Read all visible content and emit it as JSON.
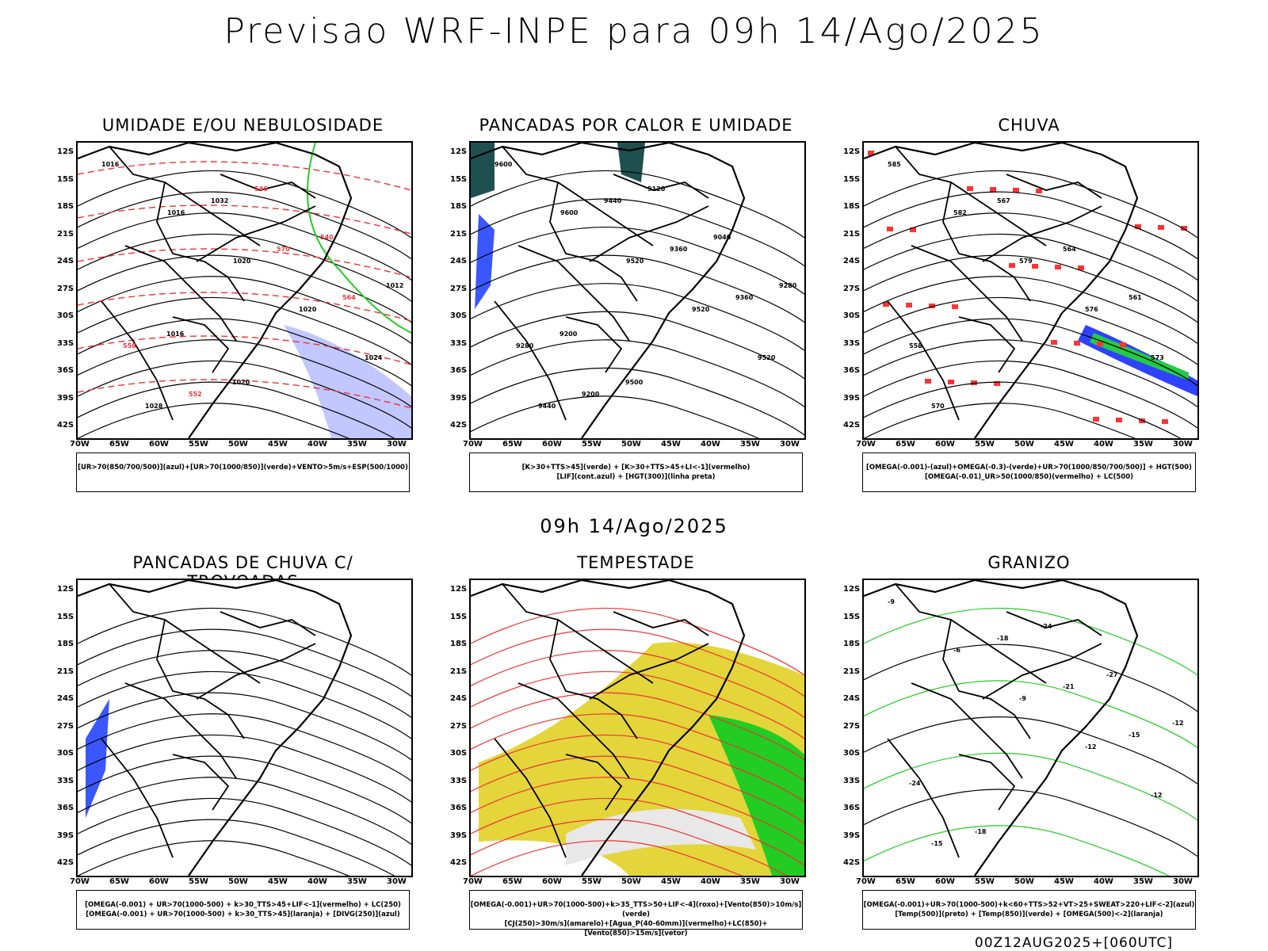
{
  "title": "Previsao WRF-INPE  para 09h 14/Ago/2025",
  "mid_title": "09h 14/Ago/2025",
  "footer": "00Z12AUG2025+[060UTC]",
  "lat_labels": [
    "12S",
    "15S",
    "18S",
    "21S",
    "24S",
    "27S",
    "30S",
    "33S",
    "36S",
    "39S",
    "42S"
  ],
  "lon_labels": [
    "70W",
    "65W",
    "60W",
    "55W",
    "50W",
    "45W",
    "40W",
    "35W",
    "30W"
  ],
  "panels": [
    {
      "title": "UMIDADE E/OU NEBULOSIDADE",
      "legend": [
        "[UR>70(850/700/500)](azul)+[UR>70(1000/850)](verde)+VENTO>5m/s+ESP(500/1000)"
      ],
      "labels": [
        "1016",
        "1016",
        "1020",
        "1020",
        "1024",
        "1028",
        "1032",
        "570",
        "564",
        "558",
        "552",
        "546",
        "540",
        "1012",
        "1016",
        "1020"
      ]
    },
    {
      "title": "PANCADAS POR CALOR E UMIDADE",
      "legend": [
        "[K>30+TTS>45](verde) + [K>30+TTS>45+LI<-1](vermelho)",
        "[LIF](cont.azul) + [HGT(300)](linha preta)"
      ],
      "labels": [
        "9600",
        "9600",
        "9520",
        "9520",
        "9520",
        "9440",
        "9440",
        "9360",
        "9360",
        "9280",
        "9200",
        "9120",
        "9040",
        "9280",
        "9200",
        "9500"
      ]
    },
    {
      "title": "CHUVA",
      "legend": [
        "[OMEGA(-0.001)-(azul)+OMEGA(-0.3)-(verde)+UR>70(1000/850/700/500)] + HGT(500)",
        "[OMEGA(-0.01)_UR>50(1000/850)(vermelho) + LC(500)"
      ],
      "labels": [
        "585",
        "582",
        "579",
        "576",
        "573",
        "570",
        "567",
        "564",
        "561",
        "558"
      ]
    },
    {
      "title": "PANCADAS DE CHUVA C/ TROVOADAS",
      "legend": [
        "[OMEGA(-0.001) + UR>70(1000-500) + k>30_TTS>45+LIF<-1](vermelho) + LC(250)",
        "[OMEGA(-0.001) + UR>70(1000-500) + k>30_TTS>45](laranja) + [DIVG(250)](azul)"
      ],
      "labels": []
    },
    {
      "title": "TEMPESTADE",
      "legend": [
        "[OMEGA(-0.001)+UR>70(1000-500)+k>35_TTS>50+LIF<-4](roxo)+[Vento(850)>10m/s](verde)",
        "[CJ(250)>30m/s](amarelo)+[Agua_P(40-60mm)](vermelho)+LC(850)+[Vento(850)>15m/s](vetor)"
      ],
      "labels": []
    },
    {
      "title": "GRANIZO",
      "legend": [
        "[OMEGA(-0.001)+UR>70(1000-500)+k<60+TTS>52+VT>25+SWEAT>220+LIF<-2](azul)",
        "[Temp(500)](preto) + [Temp(850)](verde) + [OMEGA(500)<-2](laranja)"
      ],
      "labels": [
        "-9",
        "-6",
        "-9",
        "-12",
        "-12",
        "-15",
        "-18",
        "-21",
        "-15",
        "-24",
        "-18",
        "-24",
        "-27",
        "-12"
      ]
    }
  ]
}
